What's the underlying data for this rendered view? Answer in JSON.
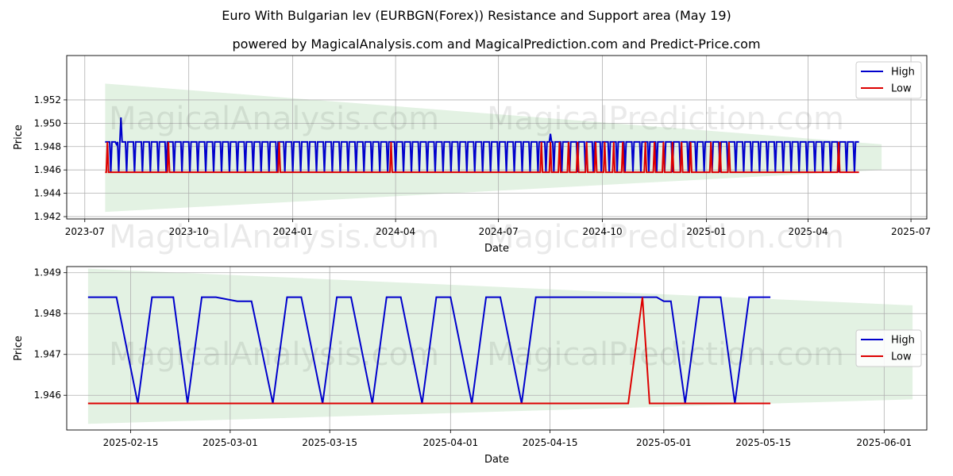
{
  "titles": {
    "main": "Euro With Bulgarian lev (EURBGN(Forex)) Resistance and Support area (May 19)",
    "sub": "powered by MagicalAnalysis.com and MagicalPrediction.com and Predict-Price.com"
  },
  "watermarks": [
    "MagicalAnalysis.com",
    "MagicalPrediction.com"
  ],
  "colors": {
    "high": "#0000cc",
    "low": "#dd0000",
    "band": "#e3f2e3",
    "grid": "#b0b0b0"
  },
  "chart_data": [
    {
      "type": "line",
      "xlabel": "Date",
      "ylabel": "Price",
      "xlim": [
        "2023-06-15",
        "2025-07-15"
      ],
      "ylim": [
        1.9418,
        1.9558
      ],
      "x_ticks": [
        "2023-07",
        "2023-10",
        "2024-01",
        "2024-04",
        "2024-07",
        "2024-10",
        "2025-01",
        "2025-04",
        "2025-07"
      ],
      "y_ticks": [
        1.942,
        1.944,
        1.946,
        1.948,
        1.95,
        1.952
      ],
      "grid": true,
      "legend": "top-right",
      "band": {
        "x": [
          "2023-07-19",
          "2025-06-05"
        ],
        "upper": [
          1.9534,
          1.9482
        ],
        "lower": [
          1.9424,
          1.946
        ]
      },
      "series": [
        {
          "name": "High",
          "start": "2023-07-19",
          "end": "2025-05-16",
          "base": 1.9484,
          "dip": 1.9458,
          "dip_period": 7,
          "spikes": [
            [
              "2023-07-29",
              1.9482
            ],
            [
              "2023-08-02",
              1.9505
            ],
            [
              "2024-08-16",
              1.9491
            ]
          ]
        },
        {
          "name": "Low",
          "start": "2023-07-19",
          "end": "2025-05-16",
          "base": 1.9458,
          "high": 1.9484,
          "spike_dates": [
            "2023-07-21",
            "2023-09-13",
            "2023-12-20",
            "2024-03-28",
            "2024-08-08",
            "2024-08-16",
            "2024-08-24",
            "2024-09-01",
            "2024-09-09",
            "2024-09-17",
            "2024-09-25",
            "2024-10-03",
            "2024-10-11",
            "2024-10-19",
            "2024-11-08",
            "2024-11-16",
            "2024-11-24",
            "2024-12-02",
            "2024-12-10",
            "2024-12-18",
            "2025-01-05",
            "2025-01-13",
            "2025-01-21",
            "2025-04-28"
          ]
        }
      ]
    },
    {
      "type": "line",
      "xlabel": "Date",
      "ylabel": "Price",
      "xlim": [
        "2025-02-06",
        "2025-06-07"
      ],
      "ylim": [
        1.94515,
        1.94915
      ],
      "x_ticks": [
        "2025-02-15",
        "2025-03-01",
        "2025-03-15",
        "2025-04-01",
        "2025-04-15",
        "2025-05-01",
        "2025-05-15",
        "2025-06-01"
      ],
      "y_ticks": [
        1.946,
        1.947,
        1.948,
        1.949
      ],
      "grid": true,
      "legend": "center-right",
      "band": {
        "x": [
          "2025-02-09",
          "2025-06-05"
        ],
        "upper": [
          1.9491,
          1.9482
        ],
        "lower": [
          1.9453,
          1.9459
        ]
      },
      "series": [
        {
          "name": "High",
          "x": [
            "2025-02-09",
            "2025-02-13",
            "2025-02-16",
            "2025-02-18",
            "2025-02-21",
            "2025-02-23",
            "2025-02-25",
            "2025-02-27",
            "2025-03-02",
            "2025-03-04",
            "2025-03-07",
            "2025-03-09",
            "2025-03-11",
            "2025-03-14",
            "2025-03-16",
            "2025-03-18",
            "2025-03-21",
            "2025-03-23",
            "2025-03-25",
            "2025-03-28",
            "2025-03-30",
            "2025-04-01",
            "2025-04-04",
            "2025-04-06",
            "2025-04-08",
            "2025-04-11",
            "2025-04-13",
            "2025-04-15",
            "2025-04-30",
            "2025-05-01",
            "2025-05-02",
            "2025-05-04",
            "2025-05-06",
            "2025-05-09",
            "2025-05-11",
            "2025-05-13",
            "2025-05-16"
          ],
          "y": [
            1.9484,
            1.9484,
            1.9458,
            1.9484,
            1.9484,
            1.9458,
            1.9484,
            1.9484,
            1.9483,
            1.9483,
            1.9458,
            1.9484,
            1.9484,
            1.9458,
            1.9484,
            1.9484,
            1.9458,
            1.9484,
            1.9484,
            1.9458,
            1.9484,
            1.9484,
            1.9458,
            1.9484,
            1.9484,
            1.9458,
            1.9484,
            1.9484,
            1.9484,
            1.9483,
            1.9483,
            1.9458,
            1.9484,
            1.9484,
            1.9458,
            1.9484,
            1.9484
          ]
        },
        {
          "name": "Low",
          "x": [
            "2025-02-09",
            "2025-04-26",
            "2025-04-28",
            "2025-04-29",
            "2025-05-16"
          ],
          "y": [
            1.9458,
            1.9458,
            1.9484,
            1.9458,
            1.9458
          ]
        }
      ]
    }
  ]
}
